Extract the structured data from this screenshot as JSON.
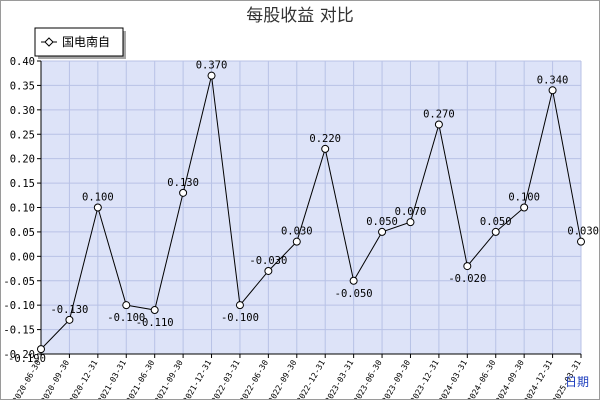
{
  "chart_data": {
    "type": "line",
    "title": "每股收益  对比",
    "xlabel": "日期",
    "ylabel": "",
    "ylim": [
      -0.2,
      0.4
    ],
    "yticks": [
      0.4,
      0.35,
      0.3,
      0.25,
      0.2,
      0.15,
      0.1,
      0.05,
      0.0,
      -0.05,
      -0.1,
      -0.15,
      -0.2
    ],
    "ytick_labels": [
      "0.40",
      "0.35",
      "0.30",
      "0.25",
      "0.20",
      "0.15",
      "0.10",
      "0.05",
      "0.00",
      "-0.05",
      "-0.10",
      "-0.15",
      "-0.20"
    ],
    "grid": true,
    "legend": "top-left",
    "categories": [
      "2020-06-30",
      "2020-09-30",
      "2020-12-31",
      "2021-03-31",
      "2021-06-30",
      "2021-09-30",
      "2021-12-31",
      "2022-03-31",
      "2022-06-30",
      "2022-09-30",
      "2022-12-31",
      "2023-03-31",
      "2023-06-30",
      "2023-09-30",
      "2023-12-31",
      "2024-03-31",
      "2024-06-30",
      "2024-09-30",
      "2024-12-31",
      "2025-03-31"
    ],
    "series": [
      {
        "name": "国电南自",
        "color": "#000000",
        "values": [
          -0.19,
          -0.13,
          0.1,
          -0.1,
          -0.11,
          0.13,
          0.37,
          -0.1,
          -0.03,
          0.03,
          0.22,
          -0.05,
          0.05,
          0.07,
          0.27,
          -0.02,
          0.05,
          0.1,
          0.34,
          0.03
        ],
        "labels": [
          "-0.190",
          "-0.130",
          "0.100",
          "-0.100",
          "-0.110",
          "0.130",
          "0.370",
          "-0.100",
          "-0.030",
          "0.030",
          "0.220",
          "-0.050",
          "0.050",
          "0.070",
          "0.270",
          "-0.020",
          "0.050",
          "0.100",
          "0.340",
          "0.030"
        ]
      }
    ],
    "colors": {
      "plot_background": "#dde3f8",
      "grid": "#b8c2e6",
      "axis": "#000000"
    }
  }
}
